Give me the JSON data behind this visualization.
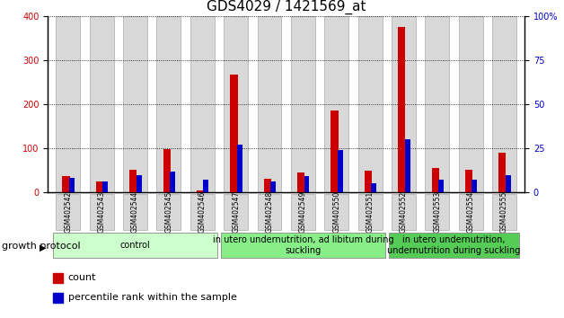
{
  "title": "GDS4029 / 1421569_at",
  "samples": [
    "GSM402542",
    "GSM402543",
    "GSM402544",
    "GSM402545",
    "GSM402546",
    "GSM402547",
    "GSM402548",
    "GSM402549",
    "GSM402550",
    "GSM402551",
    "GSM402552",
    "GSM402553",
    "GSM402554",
    "GSM402555"
  ],
  "count": [
    38,
    25,
    52,
    98,
    5,
    268,
    30,
    45,
    185,
    50,
    375,
    55,
    52,
    90
  ],
  "percentile": [
    8,
    6,
    10,
    12,
    7,
    27,
    6,
    9,
    24,
    5,
    30,
    7,
    7,
    10
  ],
  "groups": [
    {
      "label": "control",
      "start": 0,
      "end": 5,
      "color": "#ccffcc"
    },
    {
      "label": "in utero undernutrition, ad libitum during\nsuckling",
      "start": 5,
      "end": 10,
      "color": "#88ee88"
    },
    {
      "label": "in utero undernutrition,\nundernutrition during suckling",
      "start": 10,
      "end": 14,
      "color": "#55cc55"
    }
  ],
  "count_color": "#cc0000",
  "percentile_color": "#0000cc",
  "bar_face_color": "#d8d8d8",
  "bar_edge_color": "#aaaaaa",
  "left_ylim": [
    0,
    400
  ],
  "right_ylim": [
    0,
    100
  ],
  "left_yticks": [
    0,
    100,
    200,
    300,
    400
  ],
  "right_yticks": [
    0,
    25,
    50,
    75,
    100
  ],
  "right_yticklabels": [
    "0",
    "25",
    "50",
    "75",
    "100%"
  ],
  "grid_color": "#000000",
  "title_fontsize": 11,
  "tick_fontsize": 7,
  "label_fontsize": 8,
  "group_label_fontsize": 7,
  "growth_protocol_label": "growth protocol",
  "legend_items": [
    {
      "label": "count",
      "color": "#cc0000"
    },
    {
      "label": "percentile rank within the sample",
      "color": "#0000cc"
    }
  ]
}
